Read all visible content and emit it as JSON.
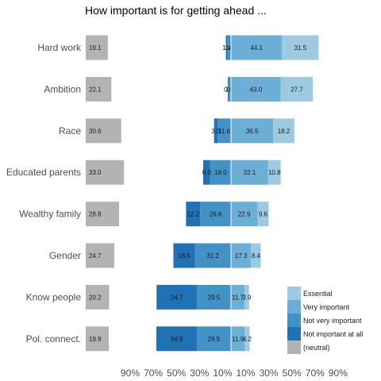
{
  "chart_data": {
    "type": "bar",
    "subtype": "diverging-stacked-likert",
    "title": "How important is for getting ahead ...",
    "categories": [
      "Hard work",
      "Ambition",
      "Race",
      "Educated parents",
      "Wealthy family",
      "Gender",
      "Know people",
      "Pol. connect."
    ],
    "neutral": {
      "name": "(neutral)",
      "color": "#b3b3b3",
      "values": [
        19.1,
        22.1,
        30.6,
        33.0,
        28.8,
        24.7,
        20.2,
        19.9
      ]
    },
    "negative_series": [
      {
        "name": "Not very important",
        "color": "#4292c6",
        "values": [
          3.0,
          1.9,
          11.6,
          18.0,
          26.6,
          31.2,
          29.5,
          29.5
        ]
      },
      {
        "name": "Not important at all",
        "color": "#2171b5",
        "values": [
          1.4,
          0.8,
          3.0,
          6.0,
          12.2,
          18.5,
          34.7,
          34.9
        ]
      }
    ],
    "positive_series": [
      {
        "name": "Very important",
        "color": "#6baed6",
        "values": [
          44.1,
          43.0,
          36.5,
          32.1,
          22.9,
          17.3,
          11.7,
          11.9
        ]
      },
      {
        "name": "Essential",
        "color": "#9ecae1",
        "values": [
          31.5,
          27.7,
          18.2,
          10.8,
          9.6,
          8.4,
          3.9,
          4.2
        ]
      }
    ],
    "labels": {
      "neutral": [
        "19.1",
        "22.1",
        "30.6",
        "33.0",
        "28.8",
        "24.7",
        "20.2",
        "19.9"
      ],
      "Not important at all": [
        "1.4",
        "0.8",
        "3.0",
        "6.0",
        "12.2",
        "18.5",
        "34.7",
        "34.9"
      ],
      "Not very important": [
        "3.0",
        "1.9",
        "11.6",
        "18.0",
        "26.6",
        "31.2",
        "29.5",
        "29.5"
      ],
      "Very important": [
        "44.1",
        "43.0",
        "36.5",
        "32.1",
        "22.9",
        "17.3",
        "11.7",
        "11.9"
      ],
      "Essential": [
        "31.5",
        "27.7",
        "18.2",
        "10.8",
        "9.6",
        "8.4",
        "3.9",
        "4.2"
      ]
    },
    "x_ticks": [
      "90%",
      "70%",
      "50%",
      "30%",
      "10%",
      "10%",
      "30%",
      "50%",
      "70%",
      "90%"
    ],
    "legend": {
      "position": "bottom-right",
      "entries": [
        {
          "name": "Essential",
          "color": "#9ecae1"
        },
        {
          "name": "Very important",
          "color": "#6baed6"
        },
        {
          "name": "Not very important",
          "color": "#4292c6"
        },
        {
          "name": "Not important at all",
          "color": "#2171b5"
        },
        {
          "name": "(neutral)",
          "color": "#b3b3b3"
        }
      ]
    },
    "grid": false
  }
}
